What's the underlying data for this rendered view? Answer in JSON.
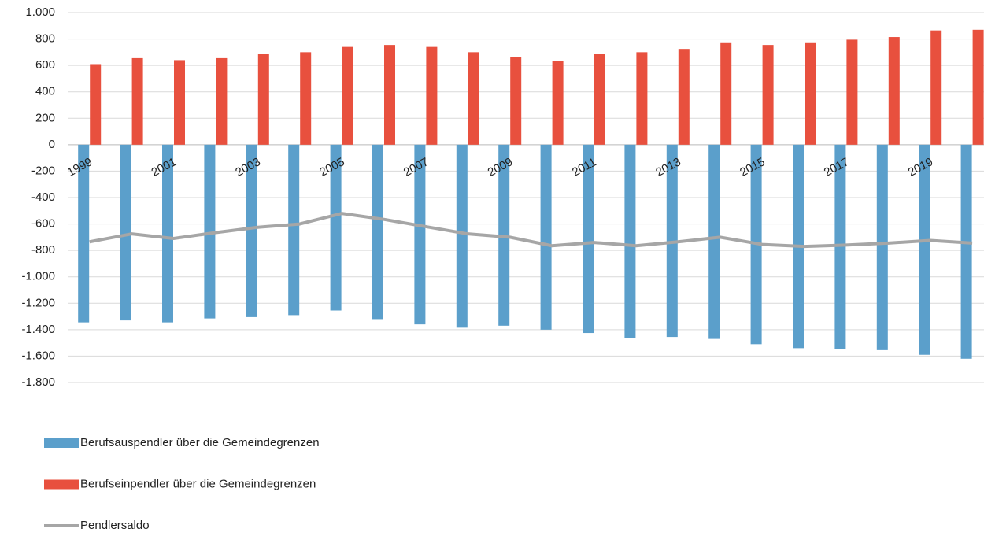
{
  "chart_data": {
    "type": "bar",
    "categories": [
      "1999",
      null,
      "2001",
      null,
      "2003",
      null,
      "2005",
      null,
      "2007",
      null,
      "2009",
      null,
      "2011",
      null,
      "2013",
      null,
      "2015",
      null,
      "2017",
      null,
      "2019",
      null
    ],
    "series": [
      {
        "name": "Berufsauspendler über die Gemeindegrenzen",
        "color": "#5b9fcb",
        "values": [
          -1345,
          -1330,
          -1345,
          -1315,
          -1305,
          -1290,
          -1255,
          -1320,
          -1360,
          -1385,
          -1370,
          -1400,
          -1425,
          -1465,
          -1455,
          -1470,
          -1510,
          -1540,
          -1545,
          -1555,
          -1590,
          -1620
        ]
      },
      {
        "name": "Berufseinpendler über die Gemeindegrenzen",
        "color": "#e8503e",
        "values": [
          610,
          655,
          640,
          655,
          685,
          700,
          740,
          755,
          740,
          700,
          665,
          635,
          685,
          700,
          725,
          775,
          755,
          775,
          795,
          815,
          865,
          870
        ]
      },
      {
        "name": "Pendlersaldo",
        "color": "#a6a6a6",
        "type": "line",
        "values": [
          -735,
          -675,
          -710,
          -665,
          -625,
          -600,
          -520,
          -565,
          -620,
          -675,
          -700,
          -765,
          -740,
          -765,
          -735,
          -700,
          -755,
          -770,
          -760,
          -745,
          -725,
          -745
        ]
      }
    ],
    "ylim": [
      -1800,
      1000
    ],
    "yticks": [
      {
        "value": 1000,
        "label": "1.000"
      },
      800,
      600,
      400,
      200,
      0,
      -200,
      -400,
      -600,
      -800,
      {
        "value": -1000,
        "label": "-1.000"
      },
      {
        "value": -1200,
        "label": "-1.200"
      },
      {
        "value": -1400,
        "label": "-1.400"
      },
      {
        "value": -1600,
        "label": "-1.600"
      },
      {
        "value": -1800,
        "label": "-1.800"
      }
    ],
    "grid": true,
    "legend": "bottom"
  }
}
